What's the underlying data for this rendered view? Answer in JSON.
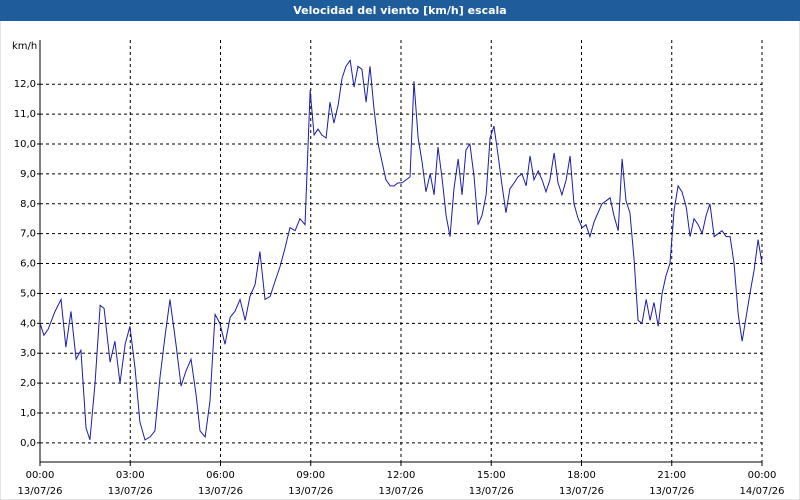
{
  "chart_data": {
    "type": "line",
    "title": "Velocidad del viento [km/h] escala",
    "y_unit": "km/h",
    "xlim": [
      0,
      24
    ],
    "ylim": [
      -0.64,
      13.48
    ],
    "grid": true,
    "line_color": "#1c1ca8",
    "title_bar_color": "#1f5c9c",
    "xticks": [
      {
        "value": 0,
        "label": "00:00",
        "sublabel": "13/07/26"
      },
      {
        "value": 3,
        "label": "03:00",
        "sublabel": "13/07/26"
      },
      {
        "value": 6,
        "label": "06:00",
        "sublabel": "13/07/26"
      },
      {
        "value": 9,
        "label": "09:00",
        "sublabel": "13/07/26"
      },
      {
        "value": 12,
        "label": "12:00",
        "sublabel": "13/07/26"
      },
      {
        "value": 15,
        "label": "15:00",
        "sublabel": "13/07/26"
      },
      {
        "value": 18,
        "label": "18:00",
        "sublabel": "13/07/26"
      },
      {
        "value": 21,
        "label": "21:00",
        "sublabel": "13/07/26"
      },
      {
        "value": 24,
        "label": "00:00",
        "sublabel": "14/07/26"
      }
    ],
    "yticks": [
      {
        "value": 0,
        "label": "0,0"
      },
      {
        "value": 1,
        "label": "1,0"
      },
      {
        "value": 2,
        "label": "2,0"
      },
      {
        "value": 3,
        "label": "3,0"
      },
      {
        "value": 4,
        "label": "4,0"
      },
      {
        "value": 5,
        "label": "5,0"
      },
      {
        "value": 6,
        "label": "6,0"
      },
      {
        "value": 7,
        "label": "7,0"
      },
      {
        "value": 8,
        "label": "8,0"
      },
      {
        "value": 9,
        "label": "9,0"
      },
      {
        "value": 10,
        "label": "10,0"
      },
      {
        "value": 11,
        "label": "11,0"
      },
      {
        "value": 12,
        "label": "12,0"
      }
    ],
    "x": [
      0,
      0.13,
      0.27,
      0.5,
      0.7,
      0.86,
      1.03,
      1.2,
      1.36,
      1.53,
      1.66,
      1.83,
      2.0,
      2.13,
      2.33,
      2.49,
      2.66,
      2.83,
      2.99,
      3.16,
      3.32,
      3.49,
      3.66,
      3.82,
      3.99,
      4.16,
      4.32,
      4.52,
      4.69,
      4.85,
      5.02,
      5.19,
      5.32,
      5.49,
      5.65,
      5.82,
      5.98,
      6.15,
      6.32,
      6.48,
      6.65,
      6.82,
      6.98,
      7.15,
      7.31,
      7.48,
      7.65,
      7.81,
      7.98,
      8.14,
      8.31,
      8.48,
      8.64,
      8.81,
      8.98,
      9.11,
      9.24,
      9.37,
      9.51,
      9.64,
      9.77,
      9.91,
      10.04,
      10.17,
      10.31,
      10.44,
      10.57,
      10.7,
      10.84,
      10.97,
      11.1,
      11.24,
      11.37,
      11.5,
      11.64,
      11.77,
      11.9,
      12.03,
      12.17,
      12.3,
      12.43,
      12.57,
      12.7,
      12.83,
      12.97,
      13.1,
      13.23,
      13.36,
      13.5,
      13.63,
      13.76,
      13.9,
      14.03,
      14.16,
      14.29,
      14.43,
      14.56,
      14.69,
      14.83,
      14.96,
      15.09,
      15.23,
      15.36,
      15.49,
      15.62,
      15.76,
      15.89,
      16.02,
      16.16,
      16.29,
      16.42,
      16.56,
      16.69,
      16.82,
      16.95,
      17.09,
      17.22,
      17.35,
      17.49,
      17.62,
      17.75,
      17.89,
      18.02,
      18.15,
      18.28,
      18.42,
      18.55,
      18.68,
      18.82,
      18.95,
      19.08,
      19.22,
      19.35,
      19.48,
      19.61,
      19.75,
      19.88,
      20.01,
      20.15,
      20.28,
      20.41,
      20.55,
      20.68,
      20.81,
      20.94,
      21.08,
      21.21,
      21.34,
      21.48,
      21.61,
      21.74,
      21.88,
      22.01,
      22.14,
      22.27,
      22.41,
      22.54,
      22.67,
      22.81,
      22.94,
      23.07,
      23.21,
      23.34,
      23.47,
      23.6,
      23.74,
      23.87,
      24.0
    ],
    "series": [
      {
        "name": "Velocidad del viento",
        "values": [
          4.0,
          3.6,
          3.8,
          4.4,
          4.8,
          3.2,
          4.4,
          2.8,
          3.1,
          0.5,
          0.1,
          2.0,
          4.6,
          4.5,
          2.7,
          3.4,
          2.0,
          3.3,
          3.9,
          2.5,
          0.7,
          0.1,
          0.2,
          0.4,
          2.2,
          3.6,
          4.8,
          3.3,
          1.9,
          2.4,
          2.8,
          1.6,
          0.4,
          0.2,
          1.4,
          4.3,
          4.0,
          3.3,
          4.2,
          4.4,
          4.8,
          4.1,
          4.9,
          5.3,
          6.4,
          4.8,
          4.9,
          5.4,
          5.9,
          6.5,
          7.2,
          7.1,
          7.5,
          7.3,
          11.8,
          10.3,
          10.5,
          10.3,
          10.2,
          11.4,
          10.7,
          11.3,
          12.2,
          12.6,
          12.8,
          11.9,
          12.6,
          12.5,
          11.4,
          12.6,
          11.2,
          10.0,
          9.4,
          8.8,
          8.6,
          8.6,
          8.7,
          8.7,
          8.8,
          8.9,
          12.1,
          10.2,
          9.4,
          8.4,
          9.0,
          8.3,
          9.9,
          8.9,
          7.6,
          6.9,
          8.5,
          9.5,
          8.3,
          9.8,
          10.0,
          8.9,
          7.3,
          7.6,
          8.3,
          10.2,
          10.6,
          9.6,
          8.6,
          7.7,
          8.5,
          8.7,
          8.9,
          9.0,
          8.6,
          9.6,
          8.8,
          9.1,
          8.8,
          8.4,
          8.8,
          9.7,
          8.7,
          8.3,
          8.8,
          9.6,
          8.0,
          7.5,
          7.2,
          7.3,
          6.9,
          7.4,
          7.7,
          8.0,
          8.1,
          8.2,
          7.6,
          7.1,
          9.5,
          8.1,
          7.7,
          6.1,
          4.1,
          4.0,
          4.8,
          4.1,
          4.7,
          3.9,
          5.0,
          5.6,
          6.0,
          7.8,
          8.6,
          8.4,
          7.9,
          6.9,
          7.5,
          7.3,
          7.0,
          7.6,
          8.0,
          6.9,
          7.0,
          7.1,
          6.9,
          6.9,
          6.0,
          4.3,
          3.4,
          4.2,
          5.0,
          5.8,
          6.8,
          6.0
        ]
      }
    ]
  }
}
